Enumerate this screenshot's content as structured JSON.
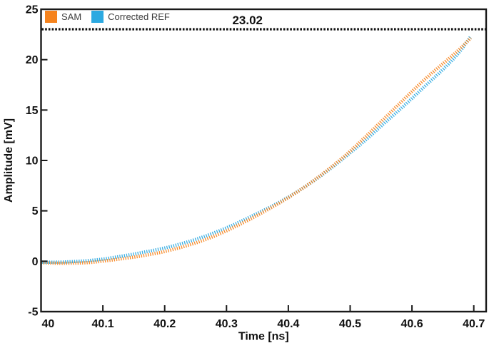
{
  "figure": {
    "background": "#ffffff",
    "axis_color": "#1a1a1a",
    "text_color": "#111111",
    "threshold_line_color": "#111111"
  },
  "legend": {
    "items": [
      {
        "label": "SAM",
        "color": "#f6831d"
      },
      {
        "label": "Corrected REF",
        "color": "#2ca9e1"
      }
    ]
  },
  "chart_data": {
    "type": "line",
    "title": "",
    "xlabel": "Time [ns]",
    "ylabel": "Amplitude [mV]",
    "xlim": [
      40,
      40.72
    ],
    "ylim": [
      -5,
      25
    ],
    "grid": false,
    "legend_position": "upper-left-inside",
    "marker_style": "dense-vertical-dash-markers",
    "x_ticks": [
      40,
      40.1,
      40.2,
      40.3,
      40.4,
      40.5,
      40.6,
      40.7
    ],
    "x_tick_labels": [
      "40",
      "40.1",
      "40.2",
      "40.3",
      "40.4",
      "40.5",
      "40.6",
      "40.7"
    ],
    "y_ticks": [
      -5,
      0,
      5,
      10,
      15,
      20,
      25
    ],
    "y_tick_labels": [
      "-5",
      "0",
      "5",
      "10",
      "15",
      "20",
      "25"
    ],
    "threshold": {
      "value": 23.02,
      "label": "23.02",
      "label_x": 40.334,
      "style": "dotted"
    },
    "x": [
      40.0,
      40.025,
      40.05,
      40.075,
      40.1,
      40.125,
      40.15,
      40.175,
      40.2,
      40.225,
      40.25,
      40.275,
      40.3,
      40.325,
      40.35,
      40.375,
      40.4,
      40.425,
      40.45,
      40.475,
      40.5,
      40.525,
      40.55,
      40.575,
      40.6,
      40.625,
      40.65,
      40.675,
      40.695
    ],
    "series": [
      {
        "name": "SAM",
        "color": "#f6831d",
        "values": [
          -0.15,
          -0.2,
          -0.2,
          -0.15,
          0.0,
          0.2,
          0.4,
          0.65,
          0.95,
          1.35,
          1.8,
          2.35,
          3.0,
          3.75,
          4.55,
          5.4,
          6.3,
          7.3,
          8.4,
          9.6,
          10.9,
          12.35,
          13.85,
          15.35,
          16.85,
          18.3,
          19.6,
          20.9,
          22.15
        ]
      },
      {
        "name": "Corrected REF",
        "color": "#2ca9e1",
        "values": [
          -0.1,
          -0.1,
          -0.05,
          0.05,
          0.2,
          0.45,
          0.7,
          1.0,
          1.3,
          1.7,
          2.15,
          2.7,
          3.3,
          4.0,
          4.75,
          5.5,
          6.35,
          7.3,
          8.35,
          9.5,
          10.75,
          12.0,
          13.4,
          14.75,
          16.15,
          17.6,
          19.0,
          20.55,
          22.3
        ]
      }
    ]
  }
}
